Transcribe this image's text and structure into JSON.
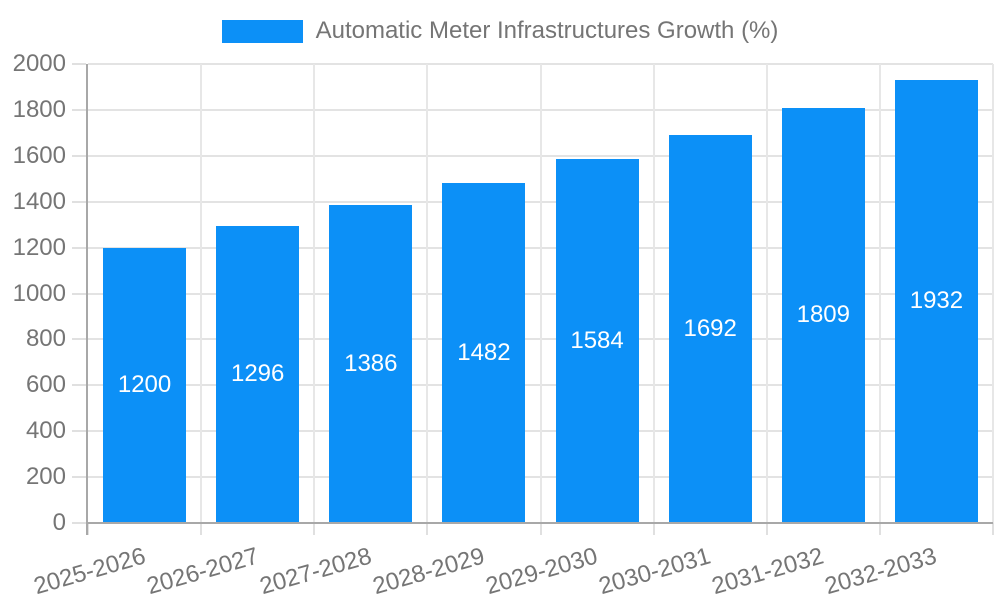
{
  "legend": {
    "label": "Automatic Meter Infrastructures Growth (%)"
  },
  "colors": {
    "bar": "#0c90f7",
    "axis_text": "#757575",
    "value_label_text": "#ffffff",
    "gridline": "#e3e3e3",
    "axis_line": "#a8a8a8",
    "background": "#ffffff"
  },
  "chart_data": {
    "type": "bar",
    "title": "Automatic Meter Infrastructures Growth (%)",
    "categories": [
      "2025-2026",
      "2026-2027",
      "2027-2028",
      "2028-2029",
      "2029-2030",
      "2030-2031",
      "2031-2032",
      "2032-2033"
    ],
    "values": [
      1200,
      1296,
      1386,
      1482,
      1584,
      1692,
      1809,
      1932
    ],
    "bar_value_labels": [
      "1200",
      "1296",
      "1386",
      "1482",
      "1584",
      "1692",
      "1809",
      "1932"
    ],
    "xlabel": "",
    "ylabel": "",
    "ylim": [
      0,
      2000
    ],
    "ytick_interval": 200,
    "ytick_labels": [
      "0",
      "200",
      "400",
      "600",
      "800",
      "1000",
      "1200",
      "1400",
      "1600",
      "1800",
      "2000"
    ],
    "grid": true,
    "legend_position": "top-center",
    "x_tick_label_rotation_deg": -16
  }
}
